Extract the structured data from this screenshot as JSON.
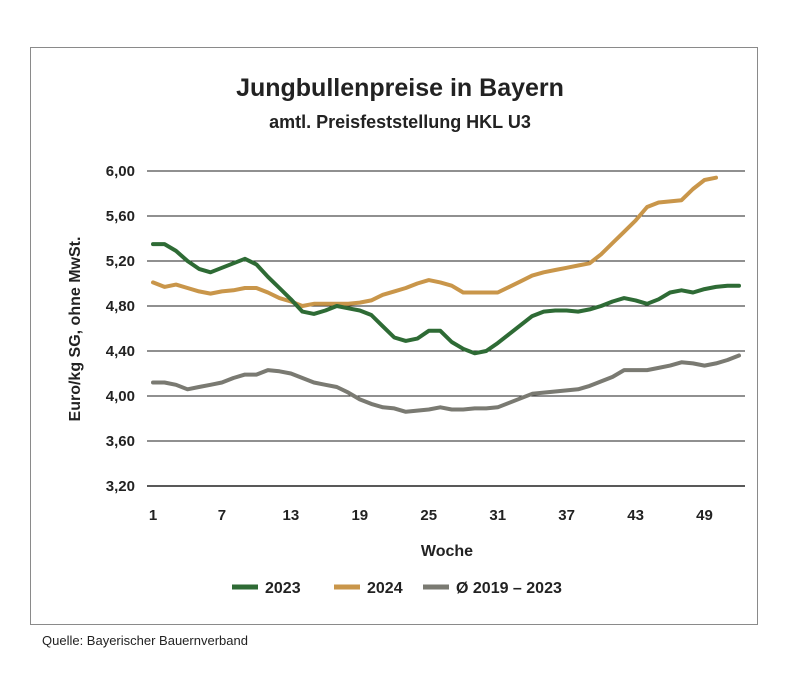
{
  "title": "Jungbullenpreise in Bayern",
  "subtitle": "amtl. Preisfeststellung HKL U3",
  "source": "Quelle: Bayerischer Bauernverband",
  "chart_data": {
    "type": "line",
    "xlabel": "Woche",
    "ylabel": "Euro/kg SG, ohne MwSt.",
    "xlim": [
      1,
      52
    ],
    "ylim": [
      3.2,
      6.0
    ],
    "x_ticks": [
      1,
      7,
      13,
      19,
      25,
      31,
      37,
      43,
      49
    ],
    "y_ticks": [
      "3,20",
      "3,60",
      "4,00",
      "4,40",
      "4,80",
      "5,20",
      "5,60",
      "6,00"
    ],
    "grid": "horizontal",
    "legend": "bottom",
    "series": [
      {
        "name": "2023",
        "color": "#2e6b35",
        "x": [
          1,
          2,
          3,
          4,
          5,
          6,
          7,
          8,
          9,
          10,
          11,
          12,
          13,
          14,
          15,
          16,
          17,
          18,
          19,
          20,
          21,
          22,
          23,
          24,
          25,
          26,
          27,
          28,
          29,
          30,
          31,
          32,
          33,
          34,
          35,
          36,
          37,
          38,
          39,
          40,
          41,
          42,
          43,
          44,
          45,
          46,
          47,
          48,
          49,
          50,
          51,
          52
        ],
        "values": [
          5.35,
          5.35,
          5.29,
          5.2,
          5.13,
          5.1,
          5.14,
          5.18,
          5.22,
          5.17,
          5.06,
          4.96,
          4.86,
          4.75,
          4.73,
          4.76,
          4.8,
          4.78,
          4.76,
          4.72,
          4.62,
          4.52,
          4.49,
          4.51,
          4.58,
          4.58,
          4.48,
          4.42,
          4.38,
          4.4,
          4.47,
          4.55,
          4.63,
          4.71,
          4.75,
          4.76,
          4.76,
          4.75,
          4.77,
          4.8,
          4.84,
          4.87,
          4.85,
          4.82,
          4.86,
          4.92,
          4.94,
          4.92,
          4.95,
          4.97,
          4.98,
          4.98
        ]
      },
      {
        "name": "2024",
        "color": "#c9964a",
        "x": [
          1,
          2,
          3,
          4,
          5,
          6,
          7,
          8,
          9,
          10,
          11,
          12,
          13,
          14,
          15,
          16,
          17,
          18,
          19,
          20,
          21,
          22,
          23,
          24,
          25,
          26,
          27,
          28,
          29,
          30,
          31,
          32,
          33,
          34,
          35,
          36,
          37,
          38,
          39,
          40,
          41,
          42,
          43,
          44,
          45,
          46,
          47,
          48,
          49,
          50
        ],
        "values": [
          5.01,
          4.97,
          4.99,
          4.96,
          4.93,
          4.91,
          4.93,
          4.94,
          4.96,
          4.96,
          4.92,
          4.87,
          4.84,
          4.8,
          4.82,
          4.82,
          4.82,
          4.82,
          4.83,
          4.85,
          4.9,
          4.93,
          4.96,
          5.0,
          5.03,
          5.01,
          4.98,
          4.92,
          4.92,
          4.92,
          4.92,
          4.97,
          5.02,
          5.07,
          5.1,
          5.12,
          5.14,
          5.16,
          5.18,
          5.26,
          5.36,
          5.46,
          5.56,
          5.68,
          5.72,
          5.73,
          5.74,
          5.84,
          5.92,
          5.94
        ]
      },
      {
        "name": "Ø 2019 – 2023",
        "color": "#7a7a72",
        "x": [
          1,
          2,
          3,
          4,
          5,
          6,
          7,
          8,
          9,
          10,
          11,
          12,
          13,
          14,
          15,
          16,
          17,
          18,
          19,
          20,
          21,
          22,
          23,
          24,
          25,
          26,
          27,
          28,
          29,
          30,
          31,
          32,
          33,
          34,
          35,
          36,
          37,
          38,
          39,
          40,
          41,
          42,
          43,
          44,
          45,
          46,
          47,
          48,
          49,
          50,
          51,
          52
        ],
        "values": [
          4.12,
          4.12,
          4.1,
          4.06,
          4.08,
          4.1,
          4.12,
          4.16,
          4.19,
          4.19,
          4.23,
          4.22,
          4.2,
          4.16,
          4.12,
          4.1,
          4.08,
          4.03,
          3.97,
          3.93,
          3.9,
          3.89,
          3.86,
          3.87,
          3.88,
          3.9,
          3.88,
          3.88,
          3.89,
          3.89,
          3.9,
          3.94,
          3.98,
          4.02,
          4.03,
          4.04,
          4.05,
          4.06,
          4.09,
          4.13,
          4.17,
          4.23,
          4.23,
          4.23,
          4.25,
          4.27,
          4.3,
          4.29,
          4.27,
          4.29,
          4.32,
          4.36
        ]
      }
    ]
  }
}
